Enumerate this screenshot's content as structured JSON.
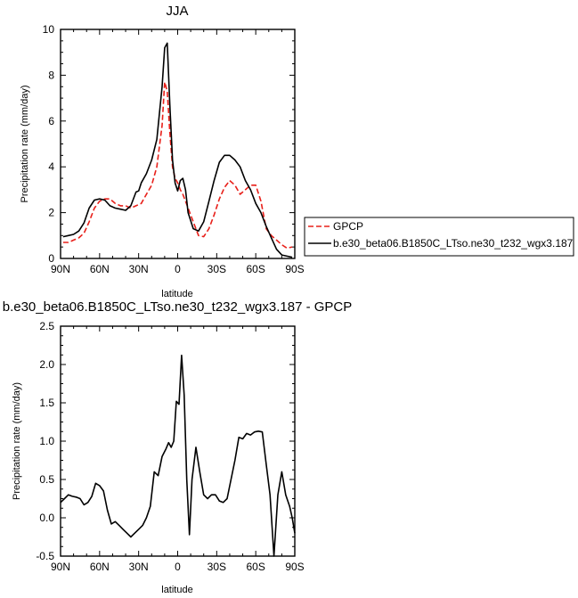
{
  "chart_data": [
    {
      "type": "line",
      "title": "JJA",
      "xlabel": "latitude",
      "ylabel": "Precipitation rate (mm/day)",
      "xlim": [
        90,
        -90
      ],
      "ylim": [
        0,
        10
      ],
      "xticks": [
        90,
        60,
        30,
        0,
        -30,
        -60,
        -90
      ],
      "xtick_labels": [
        "90N",
        "60N",
        "30N",
        "0",
        "30S",
        "60S",
        "90S"
      ],
      "yticks": [
        0,
        2,
        4,
        6,
        8,
        10
      ],
      "ytick_labels": [
        "0",
        "2",
        "4",
        "6",
        "8",
        "10"
      ],
      "legend_position": "right",
      "series": [
        {
          "name": "GPCP",
          "color": "#e8201a",
          "dash": "dashed",
          "x": [
            88,
            84,
            80,
            76,
            72,
            68,
            64,
            60,
            56,
            52,
            48,
            44,
            40,
            36,
            32,
            28,
            24,
            20,
            16,
            12,
            10,
            8,
            6,
            4,
            2,
            0,
            -2,
            -4,
            -6,
            -8,
            -12,
            -16,
            -20,
            -24,
            -28,
            -32,
            -36,
            -40,
            -44,
            -48,
            -52,
            -56,
            -60,
            -64,
            -68,
            -72,
            -76,
            -80,
            -84,
            -88
          ],
          "y": [
            0.7,
            0.7,
            0.8,
            0.9,
            1.1,
            1.6,
            2.2,
            2.5,
            2.6,
            2.6,
            2.4,
            2.3,
            2.3,
            2.2,
            2.3,
            2.4,
            2.8,
            3.2,
            4.0,
            5.8,
            7.7,
            7.3,
            5.5,
            4.0,
            3.5,
            3.3,
            3.0,
            2.8,
            2.5,
            2.2,
            1.6,
            1.0,
            0.95,
            1.3,
            1.9,
            2.6,
            3.1,
            3.4,
            3.2,
            2.8,
            3.0,
            3.2,
            3.2,
            2.5,
            1.3,
            1.0,
            0.8,
            0.6,
            0.45,
            0.5
          ]
        },
        {
          "name": "b.e30_beta06.B1850C_LTso.ne30_t232_wgx3.187",
          "color": "#000000",
          "dash": "solid",
          "x": [
            88,
            84,
            80,
            76,
            72,
            68,
            64,
            60,
            56,
            52,
            48,
            44,
            40,
            36,
            32,
            30,
            28,
            24,
            20,
            16,
            12,
            10,
            8,
            6,
            4,
            2,
            0,
            -2,
            -4,
            -6,
            -8,
            -12,
            -16,
            -20,
            -24,
            -28,
            -32,
            -36,
            -40,
            -44,
            -48,
            -52,
            -56,
            -60,
            -64,
            -68,
            -72,
            -76,
            -80,
            -84,
            -88
          ],
          "y": [
            0.95,
            1.0,
            1.05,
            1.2,
            1.55,
            2.2,
            2.55,
            2.6,
            2.55,
            2.3,
            2.2,
            2.15,
            2.1,
            2.3,
            2.9,
            2.95,
            3.3,
            3.7,
            4.3,
            5.2,
            7.5,
            9.2,
            9.4,
            6.7,
            4.3,
            3.3,
            2.95,
            3.4,
            3.5,
            3.0,
            2.0,
            1.3,
            1.2,
            1.6,
            2.5,
            3.4,
            4.2,
            4.5,
            4.5,
            4.3,
            4.0,
            3.4,
            3.0,
            2.4,
            2.0,
            1.4,
            0.9,
            0.4,
            0.15,
            0.1,
            0.05
          ]
        }
      ]
    },
    {
      "type": "line",
      "title": "b.e30_beta06.B1850C_LTso.ne30_t232_wgx3.187 - GPCP",
      "xlabel": "latitude",
      "ylabel": "Precipitation rate (mm/day)",
      "xlim": [
        90,
        -90
      ],
      "ylim": [
        -0.5,
        2.5
      ],
      "xticks": [
        90,
        60,
        30,
        0,
        -30,
        -60,
        -90
      ],
      "xtick_labels": [
        "90N",
        "60N",
        "30N",
        "0",
        "30S",
        "60S",
        "90S"
      ],
      "yticks": [
        -0.5,
        0.0,
        0.5,
        1.0,
        1.5,
        2.0,
        2.5
      ],
      "ytick_labels": [
        "-0.5",
        "0.0",
        "0.5",
        "1.0",
        "1.5",
        "2.0",
        "2.5"
      ],
      "series": [
        {
          "color": "#000000",
          "dash": "solid",
          "x": [
            90,
            87,
            84,
            81,
            78,
            75,
            72,
            69,
            66,
            63,
            60,
            57,
            54,
            51,
            48,
            45,
            42,
            39,
            36,
            33,
            30,
            27,
            24,
            21,
            18,
            15,
            12,
            9,
            7,
            5,
            3,
            1,
            -1,
            -3,
            -5,
            -7,
            -9,
            -11,
            -14,
            -17,
            -20,
            -23,
            -26,
            -29,
            -32,
            -35,
            -38,
            -41,
            -44,
            -47,
            -50,
            -53,
            -56,
            -59,
            -62,
            -65,
            -68,
            -71,
            -74,
            -77,
            -80,
            -83,
            -86,
            -88,
            -90
          ],
          "y": [
            0.2,
            0.25,
            0.3,
            0.28,
            0.27,
            0.25,
            0.17,
            0.2,
            0.28,
            0.45,
            0.42,
            0.35,
            0.1,
            -0.08,
            -0.05,
            -0.1,
            -0.15,
            -0.2,
            -0.25,
            -0.2,
            -0.15,
            -0.1,
            0.0,
            0.15,
            0.6,
            0.55,
            0.8,
            0.9,
            0.98,
            0.92,
            1.0,
            1.52,
            1.48,
            2.12,
            1.6,
            0.5,
            -0.22,
            0.5,
            0.92,
            0.6,
            0.3,
            0.25,
            0.3,
            0.3,
            0.22,
            0.2,
            0.25,
            0.5,
            0.75,
            1.05,
            1.03,
            1.1,
            1.08,
            1.12,
            1.13,
            1.12,
            0.7,
            0.3,
            -0.5,
            0.3,
            0.6,
            0.3,
            0.15,
            0.0,
            -0.2
          ]
        }
      ]
    }
  ]
}
